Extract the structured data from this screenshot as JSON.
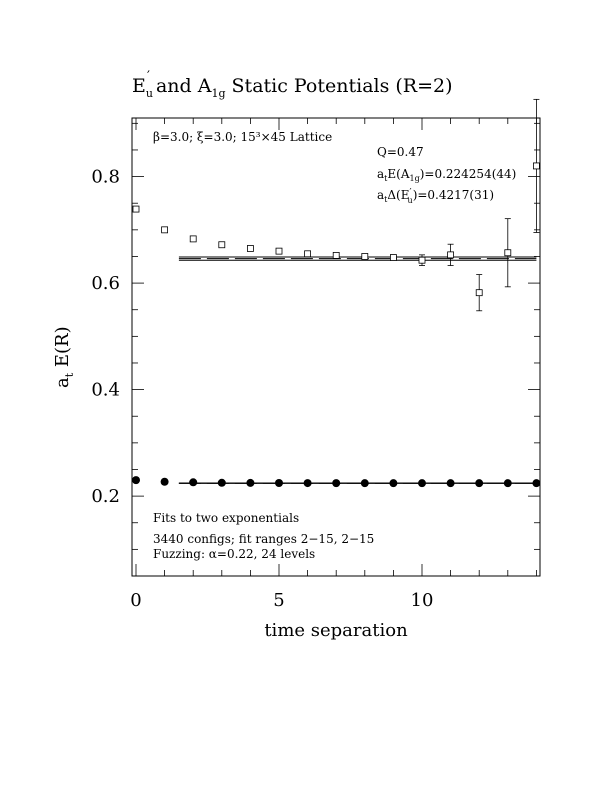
{
  "chart_data": {
    "type": "scatter",
    "title": {
      "p1": "E",
      "p1_sub": "u",
      "p1_sup": "′",
      "p2": " and A",
      "p2_sub": "1g",
      "p3": " Static Potentials (R=2)"
    },
    "xlabel": "time separation",
    "ylabel": {
      "main": "a",
      "sub": "t",
      "rest": " E(R)"
    },
    "xlim": [
      0,
      14
    ],
    "ylim": [
      0.05,
      0.91
    ],
    "xticks": [
      0,
      5,
      10
    ],
    "yticks": [
      0.2,
      0.4,
      0.6,
      0.8
    ],
    "xtick_labels": [
      "0",
      "5",
      "10"
    ],
    "ytick_labels": [
      "0.2",
      "0.4",
      "0.6",
      "0.8"
    ],
    "annotations": {
      "lattice": "β=3.0; ξ=3.0; 15³×45 Lattice",
      "q": "Q=0.47",
      "a1g": {
        "pre": "a",
        "pre_sub": "t",
        "mid": "E(A",
        "mid_sub": "1g",
        "post": ")=0.224254(44)"
      },
      "eu": {
        "pre": "a",
        "pre_sub": "t",
        "mid": "Δ(E",
        "mid_sup": "′",
        "mid_sub": "u",
        "post": ")=0.4217(31)"
      },
      "fits": "Fits to two exponentials",
      "configs": "3440 configs; fit ranges 2−15, 2−15",
      "fuzzing": "Fuzzing: α=0.22, 24 levels"
    },
    "series": [
      {
        "marker": "open-square",
        "x": [
          0,
          1,
          2,
          3,
          4,
          5,
          6,
          7,
          8,
          9,
          10,
          11,
          12,
          13,
          14
        ],
        "y": [
          0.739,
          0.7,
          0.683,
          0.672,
          0.665,
          0.66,
          0.655,
          0.652,
          0.65,
          0.648,
          0.643,
          0.653,
          0.582,
          0.657,
          0.82
        ],
        "err": [
          0.002,
          0.002,
          0.002,
          0.002,
          0.002,
          0.002,
          0.002,
          0.002,
          0.003,
          0.004,
          0.01,
          0.02,
          0.034,
          0.064,
          0.125
        ]
      },
      {
        "marker": "filled-circle",
        "x": [
          0,
          1,
          2,
          3,
          4,
          5,
          6,
          7,
          8,
          9,
          10,
          11,
          12,
          13,
          14
        ],
        "y": [
          0.23,
          0.227,
          0.226,
          0.225,
          0.2248,
          0.2246,
          0.2245,
          0.2244,
          0.2243,
          0.2243,
          0.2243,
          0.2243,
          0.2243,
          0.2243,
          0.2243
        ],
        "err": [
          0,
          0,
          0,
          0,
          0,
          0,
          0,
          0,
          0,
          0,
          0,
          0,
          0,
          0,
          0
        ]
      }
    ],
    "fit_bands": [
      {
        "x": [
          1.5,
          14
        ],
        "center": 0.6459,
        "halfwidth": 0.0031
      },
      {
        "x": [
          1.5,
          14
        ],
        "center": 0.224254,
        "halfwidth": 0.00044
      }
    ]
  }
}
